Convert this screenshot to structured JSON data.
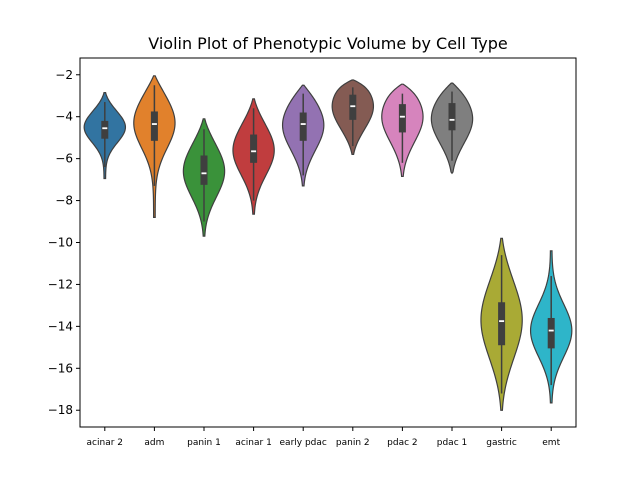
{
  "chart_data": {
    "type": "violin",
    "title": "Violin Plot of Phenotypic Volume by Cell Type",
    "xlabel": "",
    "ylabel": "",
    "ylim": [
      -18.8,
      -1.2
    ],
    "yticks": [
      -2,
      -4,
      -6,
      -8,
      -10,
      -12,
      -14,
      -16,
      -18
    ],
    "grid": false,
    "categories": [
      "acinar 2",
      "adm",
      "panin 1",
      "acinar 1",
      "early pdac",
      "panin 2",
      "pdac 2",
      "pdac 1",
      "gastric",
      "emt"
    ],
    "colors": [
      "#3274a1",
      "#e1812c",
      "#3a923a",
      "#c03d3e",
      "#9372b2",
      "#845b53",
      "#d684bd",
      "#7f7f7f",
      "#a9aa35",
      "#2eb5c9"
    ],
    "series": [
      {
        "category": "acinar 2",
        "min": -6.95,
        "max": -2.85,
        "q1": -5.05,
        "median": -4.55,
        "q3": -4.2,
        "whisker_low": -6.4,
        "whisker_high": -3.3,
        "density_peak": -4.5
      },
      {
        "category": "adm",
        "min": -8.8,
        "max": -2.05,
        "q1": -5.15,
        "median": -4.35,
        "q3": -3.75,
        "whisker_low": -7.3,
        "whisker_high": -2.5,
        "density_peak": -4.3
      },
      {
        "category": "panin 1",
        "min": -9.7,
        "max": -4.1,
        "q1": -7.25,
        "median": -6.7,
        "q3": -5.85,
        "whisker_low": -9.0,
        "whisker_high": -4.6,
        "density_peak": -6.6
      },
      {
        "category": "acinar 1",
        "min": -8.65,
        "max": -3.15,
        "q1": -6.2,
        "median": -5.65,
        "q3": -4.85,
        "whisker_low": -8.0,
        "whisker_high": -3.6,
        "density_peak": -5.6
      },
      {
        "category": "early pdac",
        "min": -7.3,
        "max": -2.5,
        "q1": -5.15,
        "median": -4.35,
        "q3": -3.8,
        "whisker_low": -6.8,
        "whisker_high": -2.9,
        "density_peak": -4.4
      },
      {
        "category": "panin 2",
        "min": -5.8,
        "max": -2.25,
        "q1": -4.15,
        "median": -3.5,
        "q3": -2.95,
        "whisker_low": -5.4,
        "whisker_high": -2.6,
        "density_peak": -3.5
      },
      {
        "category": "pdac 2",
        "min": -6.85,
        "max": -2.45,
        "q1": -4.75,
        "median": -4.0,
        "q3": -3.4,
        "whisker_low": -6.2,
        "whisker_high": -2.9,
        "density_peak": -4.0
      },
      {
        "category": "pdac 1",
        "min": -6.7,
        "max": -2.4,
        "q1": -4.65,
        "median": -4.15,
        "q3": -3.35,
        "whisker_low": -6.1,
        "whisker_high": -2.8,
        "density_peak": -4.1
      },
      {
        "category": "gastric",
        "min": -18.0,
        "max": -9.8,
        "q1": -14.9,
        "median": -13.75,
        "q3": -12.85,
        "whisker_low": -17.2,
        "whisker_high": -10.6,
        "density_peak": -13.7
      },
      {
        "category": "emt",
        "min": -17.65,
        "max": -10.4,
        "q1": -15.05,
        "median": -14.2,
        "q3": -13.6,
        "whisker_low": -16.8,
        "whisker_high": -11.6,
        "density_peak": -14.2
      }
    ]
  }
}
